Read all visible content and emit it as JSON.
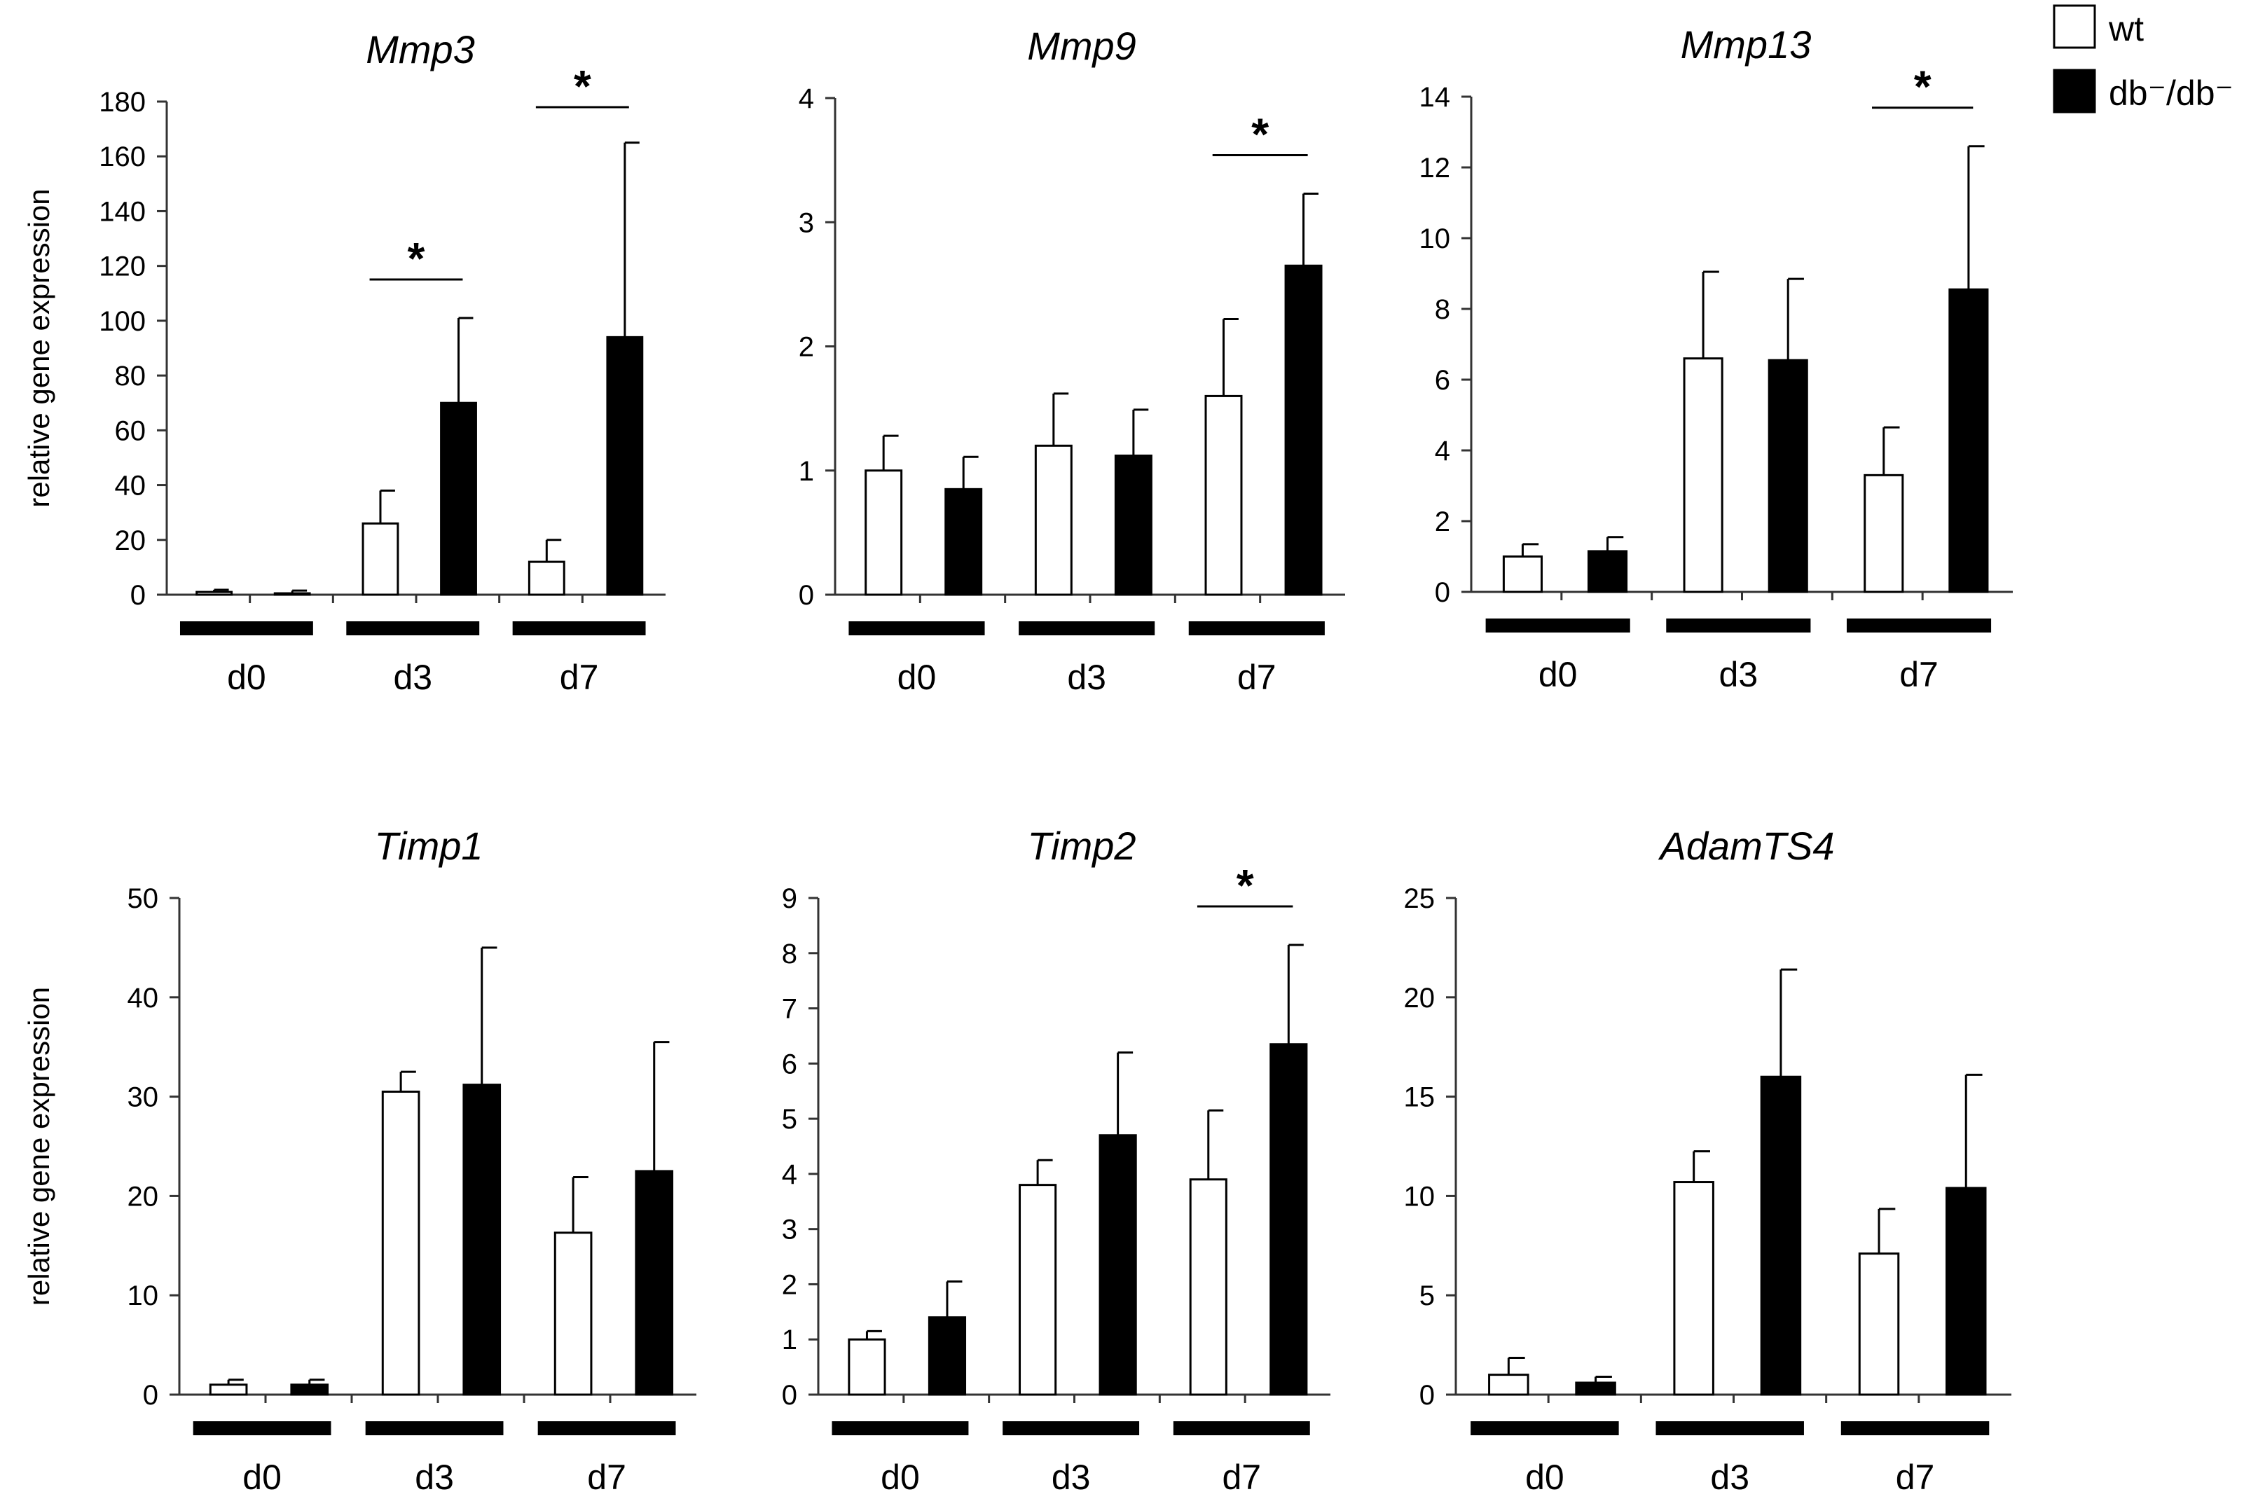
{
  "figure": {
    "legend": {
      "items": [
        {
          "label": "wt",
          "color": "#ffffff"
        },
        {
          "label": "db⁻/db⁻",
          "color": "#000000"
        }
      ]
    }
  },
  "chart_data": [
    {
      "type": "bar",
      "title": "Mmp3",
      "ylabel": "relative gene expression",
      "ylim": [
        0,
        180
      ],
      "yticks": [
        0,
        20,
        40,
        60,
        80,
        100,
        120,
        140,
        160,
        180
      ],
      "categories": [
        "d0",
        "d3",
        "d7"
      ],
      "series": [
        {
          "name": "wt",
          "values": [
            1,
            26,
            12
          ],
          "errors": [
            0.8,
            12,
            8
          ]
        },
        {
          "name": "db⁻/db⁻",
          "values": [
            0.5,
            70,
            94
          ],
          "errors": [
            1,
            31,
            71
          ]
        }
      ],
      "significance": [
        {
          "category": "d3",
          "label": "*"
        },
        {
          "category": "d7",
          "label": "*"
        }
      ]
    },
    {
      "type": "bar",
      "title": "Mmp9",
      "ylabel": "",
      "ylim": [
        0,
        4
      ],
      "yticks": [
        0,
        1,
        2,
        3,
        4
      ],
      "categories": [
        "d0",
        "d3",
        "d7"
      ],
      "series": [
        {
          "name": "wt",
          "values": [
            1.0,
            1.2,
            1.6
          ],
          "errors": [
            0.28,
            0.42,
            0.62
          ]
        },
        {
          "name": "db⁻/db⁻",
          "values": [
            0.85,
            1.12,
            2.65
          ],
          "errors": [
            0.26,
            0.37,
            0.58
          ]
        }
      ],
      "significance": [
        {
          "category": "d7",
          "label": "*"
        }
      ]
    },
    {
      "type": "bar",
      "title": "Mmp13",
      "ylabel": "",
      "ylim": [
        0,
        14
      ],
      "yticks": [
        0,
        2,
        4,
        6,
        8,
        10,
        12,
        14
      ],
      "categories": [
        "d0",
        "d3",
        "d7"
      ],
      "series": [
        {
          "name": "wt",
          "values": [
            1.0,
            6.6,
            3.3
          ],
          "errors": [
            0.35,
            2.45,
            1.35
          ]
        },
        {
          "name": "db⁻/db⁻",
          "values": [
            1.15,
            6.55,
            8.55
          ],
          "errors": [
            0.4,
            2.3,
            4.05
          ]
        }
      ],
      "significance": [
        {
          "category": "d7",
          "label": "*"
        }
      ]
    },
    {
      "type": "bar",
      "title": "Timp1",
      "ylabel": "relative gene expression",
      "ylim": [
        0,
        50
      ],
      "yticks": [
        0,
        10,
        20,
        30,
        40,
        50
      ],
      "categories": [
        "d0",
        "d3",
        "d7"
      ],
      "series": [
        {
          "name": "wt",
          "values": [
            1.0,
            30.5,
            16.3
          ],
          "errors": [
            0.5,
            2.0,
            5.6
          ]
        },
        {
          "name": "db⁻/db⁻",
          "values": [
            1.0,
            31.2,
            22.5
          ],
          "errors": [
            0.5,
            13.8,
            13.0
          ]
        }
      ],
      "significance": []
    },
    {
      "type": "bar",
      "title": "Timp2",
      "ylabel": "",
      "ylim": [
        0,
        9
      ],
      "yticks": [
        0,
        1,
        2,
        3,
        4,
        5,
        6,
        7,
        8,
        9
      ],
      "categories": [
        "d0",
        "d3",
        "d7"
      ],
      "series": [
        {
          "name": "wt",
          "values": [
            1.0,
            3.8,
            3.9
          ],
          "errors": [
            0.15,
            0.45,
            1.25
          ]
        },
        {
          "name": "db⁻/db⁻",
          "values": [
            1.4,
            4.7,
            6.35
          ],
          "errors": [
            0.65,
            1.5,
            1.8
          ]
        }
      ],
      "significance": [
        {
          "category": "d7",
          "label": "*"
        }
      ]
    },
    {
      "type": "bar",
      "title": "AdamTS4",
      "ylabel": "",
      "ylim": [
        0,
        25
      ],
      "yticks": [
        0,
        5,
        10,
        15,
        20,
        25
      ],
      "categories": [
        "d0",
        "d3",
        "d7"
      ],
      "series": [
        {
          "name": "wt",
          "values": [
            1.0,
            10.7,
            7.1
          ],
          "errors": [
            0.85,
            1.55,
            2.25
          ]
        },
        {
          "name": "db⁻/db⁻",
          "values": [
            0.6,
            16.0,
            10.4
          ],
          "errors": [
            0.3,
            5.4,
            5.7
          ]
        }
      ],
      "significance": []
    }
  ]
}
